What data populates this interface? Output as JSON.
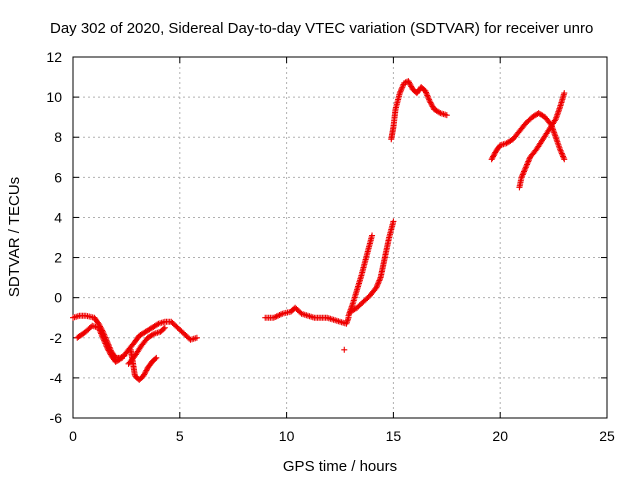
{
  "chart_data": {
    "type": "scatter",
    "title": "Day 302 of 2020, Sidereal Day-to-day VTEC variation (SDTVAR) for receiver unro",
    "xlabel": "GPS time / hours",
    "ylabel": "SDTVAR / TECUs",
    "xlim": [
      0,
      25
    ],
    "ylim": [
      -6,
      12
    ],
    "xticks": [
      "0",
      "5",
      "10",
      "15",
      "20",
      "25"
    ],
    "yticks": [
      "-6",
      "-4",
      "-2",
      "0",
      "2",
      "4",
      "6",
      "8",
      "10",
      "12"
    ],
    "grid": true,
    "marker": "+",
    "color": "#ee0000",
    "series": [
      {
        "segments": [
          [
            [
              0.0,
              -1.0
            ],
            [
              0.3,
              -0.9
            ],
            [
              0.6,
              -0.9
            ],
            [
              1.0,
              -1.0
            ],
            [
              1.2,
              -1.3
            ],
            [
              1.4,
              -1.7
            ],
            [
              1.6,
              -2.2
            ],
            [
              1.8,
              -2.7
            ],
            [
              2.0,
              -3.0
            ],
            [
              2.2,
              -3.0
            ],
            [
              2.4,
              -2.9
            ]
          ],
          [
            [
              0.2,
              -2.0
            ],
            [
              0.6,
              -1.7
            ],
            [
              0.9,
              -1.4
            ],
            [
              1.2,
              -1.5
            ],
            [
              1.4,
              -2.0
            ],
            [
              1.6,
              -2.5
            ],
            [
              1.8,
              -2.9
            ],
            [
              2.0,
              -3.2
            ],
            [
              2.3,
              -3.0
            ],
            [
              2.6,
              -2.6
            ],
            [
              2.9,
              -2.2
            ],
            [
              3.1,
              -1.9
            ],
            [
              3.4,
              -1.7
            ],
            [
              3.7,
              -1.5
            ],
            [
              4.0,
              -1.3
            ],
            [
              4.3,
              -1.2
            ],
            [
              4.6,
              -1.2
            ],
            [
              4.9,
              -1.5
            ],
            [
              5.2,
              -1.8
            ],
            [
              5.5,
              -2.1
            ],
            [
              5.8,
              -2.0
            ]
          ],
          [
            [
              2.7,
              -2.6
            ],
            [
              2.8,
              -3.2
            ],
            [
              2.9,
              -3.9
            ],
            [
              3.1,
              -4.1
            ],
            [
              3.3,
              -3.9
            ],
            [
              3.5,
              -3.5
            ],
            [
              3.7,
              -3.2
            ],
            [
              3.9,
              -3.0
            ]
          ],
          [
            [
              2.6,
              -3.3
            ],
            [
              2.9,
              -2.9
            ],
            [
              3.2,
              -2.4
            ],
            [
              3.5,
              -2.0
            ],
            [
              3.8,
              -1.8
            ],
            [
              4.1,
              -1.7
            ],
            [
              4.3,
              -1.5
            ]
          ],
          [
            [
              9.0,
              -1.0
            ],
            [
              9.4,
              -1.0
            ],
            [
              9.8,
              -0.8
            ],
            [
              10.2,
              -0.7
            ],
            [
              10.4,
              -0.5
            ],
            [
              10.7,
              -0.8
            ],
            [
              11.0,
              -0.9
            ],
            [
              11.3,
              -1.0
            ],
            [
              11.6,
              -1.0
            ],
            [
              11.9,
              -1.0
            ],
            [
              12.2,
              -1.1
            ],
            [
              12.5,
              -1.2
            ],
            [
              12.8,
              -1.3
            ],
            [
              12.9,
              -1.0
            ]
          ],
          [
            [
              12.7,
              -2.6
            ]
          ],
          [
            [
              12.9,
              -0.9
            ],
            [
              13.1,
              -0.3
            ],
            [
              13.3,
              0.4
            ],
            [
              13.5,
              1.1
            ],
            [
              13.7,
              1.9
            ],
            [
              13.9,
              2.7
            ],
            [
              14.0,
              3.1
            ]
          ],
          [
            [
              13.0,
              -0.7
            ],
            [
              13.3,
              -0.5
            ],
            [
              13.6,
              -0.2
            ],
            [
              13.9,
              0.1
            ],
            [
              14.2,
              0.5
            ],
            [
              14.4,
              1.0
            ],
            [
              14.6,
              2.0
            ],
            [
              14.8,
              3.0
            ],
            [
              15.0,
              3.8
            ]
          ],
          [
            [
              14.9,
              7.9
            ],
            [
              15.0,
              8.5
            ],
            [
              15.1,
              9.4
            ],
            [
              15.3,
              10.2
            ],
            [
              15.5,
              10.7
            ],
            [
              15.7,
              10.8
            ],
            [
              15.9,
              10.4
            ],
            [
              16.1,
              10.2
            ],
            [
              16.3,
              10.5
            ],
            [
              16.5,
              10.3
            ],
            [
              16.7,
              9.8
            ],
            [
              16.9,
              9.4
            ],
            [
              17.2,
              9.2
            ],
            [
              17.5,
              9.1
            ]
          ],
          [
            [
              19.6,
              6.9
            ],
            [
              19.8,
              7.3
            ],
            [
              20.0,
              7.6
            ],
            [
              20.3,
              7.7
            ],
            [
              20.6,
              7.9
            ],
            [
              20.9,
              8.3
            ],
            [
              21.2,
              8.7
            ],
            [
              21.5,
              9.0
            ],
            [
              21.8,
              9.2
            ],
            [
              22.1,
              9.0
            ],
            [
              22.4,
              8.6
            ],
            [
              22.6,
              8.0
            ],
            [
              22.8,
              7.4
            ],
            [
              23.0,
              6.9
            ]
          ],
          [
            [
              20.9,
              5.5
            ],
            [
              21.0,
              6.0
            ],
            [
              21.2,
              6.5
            ],
            [
              21.4,
              7.0
            ],
            [
              21.7,
              7.4
            ],
            [
              22.0,
              7.9
            ],
            [
              22.3,
              8.4
            ],
            [
              22.6,
              8.9
            ],
            [
              22.8,
              9.5
            ],
            [
              23.0,
              10.2
            ]
          ]
        ]
      }
    ]
  }
}
